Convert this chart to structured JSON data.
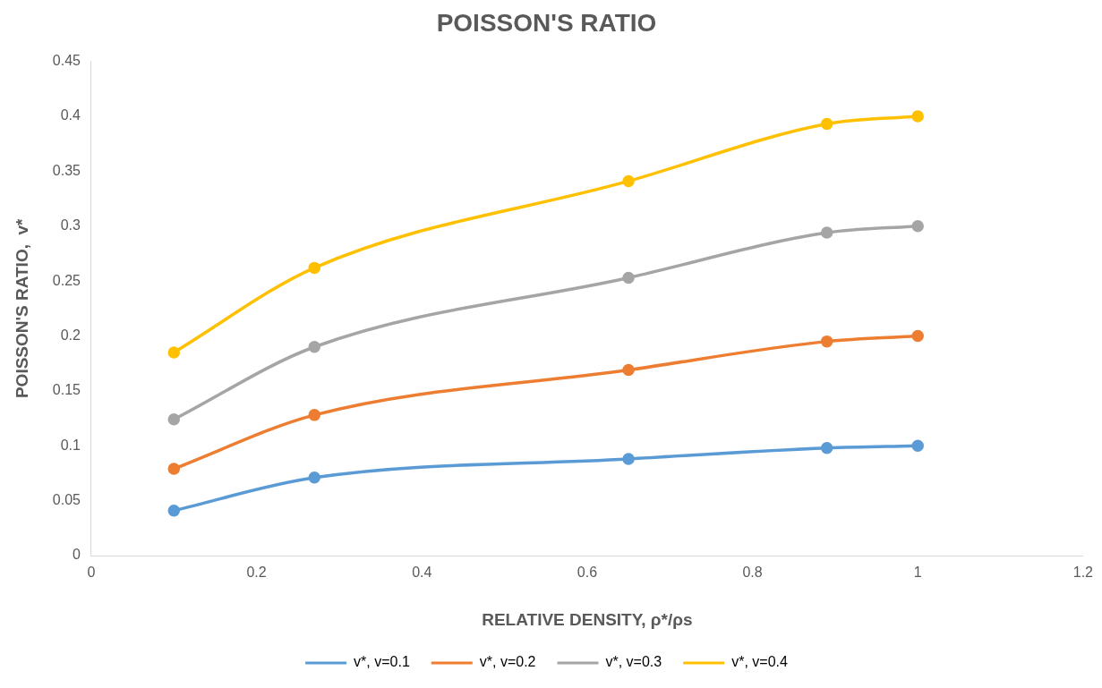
{
  "chart_data": {
    "type": "line",
    "title": "POISSON'S RATIO",
    "xlabel": "RELATIVE DENSITY, ρ*/ρs",
    "ylabel": "POISSON'S RATIO,  v*",
    "x": [
      0.1,
      0.27,
      0.65,
      0.89,
      1
    ],
    "series": [
      {
        "name": "v*, v=0.1",
        "color": "#5b9bd5",
        "values": [
          0.041,
          0.071,
          0.088,
          0.098,
          0.1
        ]
      },
      {
        "name": "v*, v=0.2",
        "color": "#ed7d31",
        "values": [
          0.079,
          0.128,
          0.169,
          0.195,
          0.2
        ]
      },
      {
        "name": "v*, v=0.3",
        "color": "#a5a5a5",
        "values": [
          0.124,
          0.19,
          0.253,
          0.294,
          0.3
        ]
      },
      {
        "name": "v*, v=0.4",
        "color": "#ffc000",
        "values": [
          0.185,
          0.262,
          0.341,
          0.393,
          0.4
        ]
      }
    ],
    "xlim": [
      0,
      1.2
    ],
    "xticks": [
      0,
      0.2,
      0.4,
      0.6,
      0.8,
      1,
      1.2
    ],
    "ylim": [
      0,
      0.45
    ],
    "yticks": [
      0,
      0.05,
      0.1,
      0.15,
      0.2,
      0.25,
      0.3,
      0.35,
      0.4,
      0.45
    ],
    "grid": false,
    "legend": "bottom",
    "marker": "circle",
    "line_style": "solid"
  }
}
